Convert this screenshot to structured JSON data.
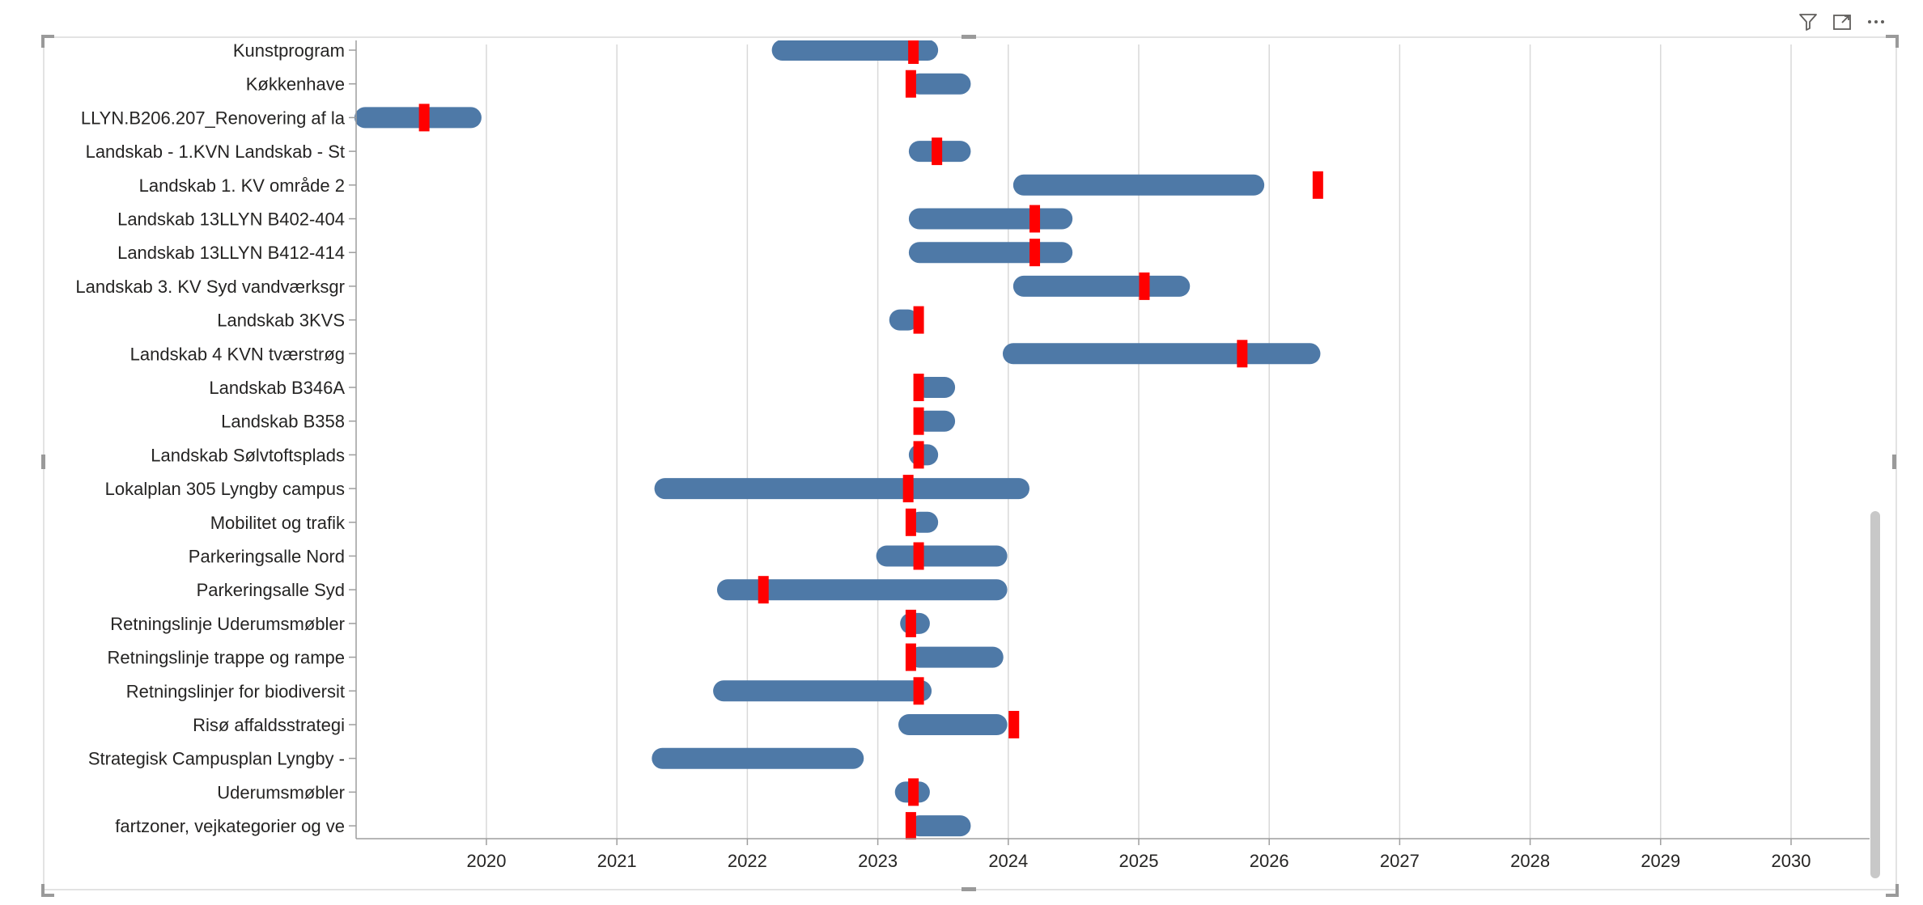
{
  "toolbar": {
    "filter_icon": "filter-icon",
    "focus_icon": "focus-mode-icon",
    "more_icon": "more-options-icon"
  },
  "colors": {
    "bar": "#4e79a7",
    "marker": "#ff0000",
    "grid": "#d9d9d9",
    "axis": "#9e9e9e",
    "text": "#252423"
  },
  "chart_data": {
    "type": "bar",
    "orientation": "horizontal-range",
    "xlabel": "",
    "ylabel": "",
    "xlim": [
      2019.0,
      2030.6
    ],
    "x_ticks": [
      "2020",
      "2021",
      "2022",
      "2023",
      "2024",
      "2025",
      "2026",
      "2027",
      "2028",
      "2029",
      "2030"
    ],
    "grid": true,
    "legend": "none",
    "categories": [
      "Kunstprogram",
      "Køkkenhave",
      "LLYN.B206.207_Renovering af la",
      "Landskab - 1.KVN Landskab - St",
      "Landskab 1. KV område 2",
      "Landskab 13LLYN B402-404",
      "Landskab 13LLYN B412-414",
      "Landskab 3. KV Syd vandværksgr",
      "Landskab 3KVS",
      "Landskab 4 KVN tværstrøg",
      "Landskab B346A",
      "Landskab B358",
      "Landskab Sølvtoftsplads",
      "Lokalplan 305 Lyngby campus",
      "Mobilitet og trafik",
      "Parkeringsalle Nord",
      "Parkeringsalle Syd",
      "Retningslinje Uderumsmøbler",
      "Retningslinje trappe og rampe",
      "Retningslinjer for biodiversit",
      "Risø affaldsstrategi",
      "Strategisk Campusplan Lyngby -",
      "Uderumsmøbler",
      "fartzoner, vejkategorier og ve"
    ],
    "start": [
      2022.2,
      2023.25,
      2019.0,
      2023.25,
      2024.05,
      2023.25,
      2023.25,
      2024.05,
      2023.1,
      2023.97,
      2023.3,
      2023.3,
      2023.25,
      2021.3,
      2023.25,
      2023.0,
      2021.78,
      2023.25,
      2023.25,
      2021.75,
      2023.17,
      2021.28,
      2023.25,
      2023.25
    ],
    "end": [
      2023.45,
      2023.7,
      2019.95,
      2023.7,
      2025.95,
      2024.48,
      2024.48,
      2025.38,
      2023.3,
      2026.38,
      2023.58,
      2023.58,
      2023.45,
      2024.15,
      2023.45,
      2023.98,
      2023.98,
      2023.32,
      2023.95,
      2023.4,
      2023.98,
      2022.88,
      2023.28,
      2023.7
    ],
    "marker": [
      2023.27,
      2023.25,
      2019.52,
      2023.45,
      2026.37,
      2024.2,
      2024.2,
      2025.04,
      2023.31,
      2025.79,
      2023.31,
      2023.31,
      2023.31,
      2023.23,
      2023.25,
      2023.31,
      2022.12,
      2023.25,
      2023.25,
      2023.31,
      2024.04,
      null,
      2023.27,
      2023.25
    ]
  }
}
